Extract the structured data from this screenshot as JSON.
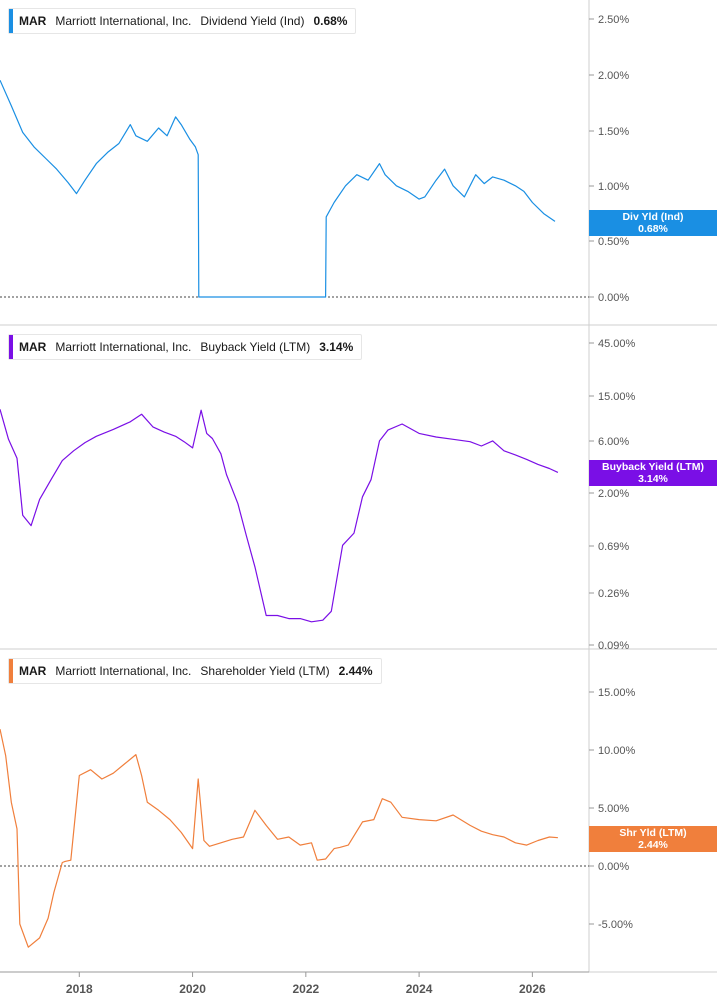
{
  "chart_data": [
    {
      "type": "line",
      "ticker": "MAR",
      "company": "Marriott International, Inc.",
      "metric": "Dividend Yield (Ind)",
      "value_label": "0.68%",
      "tag_label": "Div Yld (Ind)",
      "tag_value": "0.68%",
      "color": "#1a8fe3",
      "y_scale": "linear",
      "y_ticks": [
        "2.50%",
        "2.00%",
        "1.50%",
        "1.00%",
        "0.50%",
        "0.00%"
      ],
      "zero_line": true,
      "x": [
        2016.6,
        2016.8,
        2017.0,
        2017.2,
        2017.4,
        2017.6,
        2017.8,
        2017.95,
        2018.1,
        2018.3,
        2018.5,
        2018.7,
        2018.9,
        2019.0,
        2019.2,
        2019.4,
        2019.55,
        2019.7,
        2019.8,
        2019.95,
        2020.05,
        2020.1,
        2020.11,
        2021.0,
        2022.0,
        2022.35,
        2022.36,
        2022.5,
        2022.7,
        2022.9,
        2023.1,
        2023.3,
        2023.4,
        2023.6,
        2023.8,
        2024.0,
        2024.1,
        2024.3,
        2024.45,
        2024.6,
        2024.8,
        2025.0,
        2025.15,
        2025.3,
        2025.5,
        2025.7,
        2025.85,
        2026.0,
        2026.2,
        2026.4
      ],
      "y": [
        1.95,
        1.72,
        1.48,
        1.35,
        1.25,
        1.15,
        1.03,
        0.93,
        1.05,
        1.2,
        1.3,
        1.38,
        1.55,
        1.45,
        1.4,
        1.52,
        1.45,
        1.62,
        1.55,
        1.42,
        1.35,
        1.28,
        0,
        0,
        0,
        0,
        0.72,
        0.85,
        1.0,
        1.1,
        1.05,
        1.2,
        1.1,
        1.0,
        0.95,
        0.88,
        0.9,
        1.05,
        1.15,
        1.0,
        0.9,
        1.1,
        1.02,
        1.08,
        1.05,
        1.0,
        0.95,
        0.85,
        0.75,
        0.68
      ],
      "ylim": [
        0,
        2.7
      ]
    },
    {
      "type": "line",
      "ticker": "MAR",
      "company": "Marriott International, Inc.",
      "metric": "Buyback Yield (LTM)",
      "value_label": "3.14%",
      "tag_label": "Buyback Yield (LTM)",
      "tag_value": "3.14%",
      "color": "#7a0fe6",
      "y_scale": "log",
      "y_ticks": [
        "45.00%",
        "15.00%",
        "6.00%",
        "2.00%",
        "0.69%",
        "0.26%",
        "0.09%"
      ],
      "zero_line": false,
      "x": [
        2016.6,
        2016.75,
        2016.9,
        2017.0,
        2017.15,
        2017.3,
        2017.5,
        2017.7,
        2017.9,
        2018.1,
        2018.3,
        2018.6,
        2018.9,
        2019.1,
        2019.3,
        2019.5,
        2019.7,
        2019.85,
        2020.0,
        2020.15,
        2020.25,
        2020.35,
        2020.5,
        2020.6,
        2020.8,
        2020.95,
        2021.1,
        2021.3,
        2021.5,
        2021.7,
        2021.9,
        2022.1,
        2022.3,
        2022.45,
        2022.65,
        2022.85,
        2023.0,
        2023.15,
        2023.3,
        2023.45,
        2023.7,
        2024.0,
        2024.3,
        2024.6,
        2024.9,
        2025.1,
        2025.3,
        2025.5,
        2025.7,
        2025.9,
        2026.1,
        2026.3,
        2026.45
      ],
      "y": [
        11.5,
        6.2,
        4.2,
        1.3,
        1.05,
        1.8,
        2.7,
        4.0,
        4.9,
        5.8,
        6.6,
        7.6,
        8.9,
        10.4,
        8.0,
        7.2,
        6.6,
        5.9,
        5.2,
        11.3,
        7.0,
        6.3,
        4.6,
        3.0,
        1.65,
        0.85,
        0.45,
        0.165,
        0.165,
        0.155,
        0.155,
        0.145,
        0.15,
        0.18,
        0.7,
        0.9,
        1.9,
        2.7,
        6.0,
        7.5,
        8.5,
        7.0,
        6.5,
        6.2,
        5.9,
        5.4,
        6.0,
        4.9,
        4.5,
        4.1,
        3.7,
        3.4,
        3.14
      ],
      "ylim": [
        0.075,
        60
      ]
    },
    {
      "type": "line",
      "ticker": "MAR",
      "company": "Marriott International, Inc.",
      "metric": "Shareholder Yield (LTM)",
      "value_label": "2.44%",
      "tag_label": "Shr Yld (LTM)",
      "tag_value": "2.44%",
      "color": "#f07f3c",
      "y_scale": "linear",
      "y_ticks": [
        "15.00%",
        "10.00%",
        "5.00%",
        "0.00%",
        "-5.00%"
      ],
      "zero_line": true,
      "x": [
        2016.6,
        2016.7,
        2016.8,
        2016.9,
        2016.95,
        2017.1,
        2017.3,
        2017.45,
        2017.55,
        2017.7,
        2017.75,
        2017.85,
        2018.0,
        2018.2,
        2018.4,
        2018.6,
        2018.8,
        2019.0,
        2019.1,
        2019.2,
        2019.4,
        2019.6,
        2019.8,
        2020.0,
        2020.1,
        2020.2,
        2020.3,
        2020.5,
        2020.7,
        2020.9,
        2021.1,
        2021.3,
        2021.5,
        2021.7,
        2021.9,
        2022.1,
        2022.2,
        2022.35,
        2022.5,
        2022.6,
        2022.75,
        2023.0,
        2023.2,
        2023.35,
        2023.5,
        2023.7,
        2024.0,
        2024.3,
        2024.6,
        2024.9,
        2025.1,
        2025.3,
        2025.5,
        2025.7,
        2025.9,
        2026.1,
        2026.3,
        2026.45
      ],
      "y": [
        11.8,
        9.5,
        5.5,
        3.2,
        -5.0,
        -7.0,
        -6.2,
        -4.5,
        -2.3,
        0.3,
        0.4,
        0.5,
        7.8,
        8.3,
        7.5,
        8.0,
        8.8,
        9.6,
        7.8,
        5.5,
        4.8,
        4.0,
        2.9,
        1.5,
        7.5,
        2.2,
        1.7,
        2.0,
        2.3,
        2.5,
        4.8,
        3.5,
        2.3,
        2.5,
        1.8,
        2.0,
        0.5,
        0.6,
        1.5,
        1.6,
        1.8,
        3.8,
        4.0,
        5.8,
        5.5,
        4.2,
        4.0,
        3.9,
        4.4,
        3.5,
        3.0,
        2.7,
        2.5,
        2.0,
        1.8,
        2.2,
        2.5,
        2.44
      ],
      "ylim": [
        -7.5,
        16.5
      ]
    }
  ],
  "x_axis": {
    "tick_labels": [
      "2018",
      "2020",
      "2022",
      "2024",
      "2026"
    ],
    "tick_values": [
      2018,
      2020,
      2022,
      2024,
      2026
    ],
    "xlim": [
      2016.6,
      2027.0
    ]
  },
  "colors": {
    "grid": "#cccccc",
    "axis_text": "#555555",
    "zero_line": "#444444"
  }
}
